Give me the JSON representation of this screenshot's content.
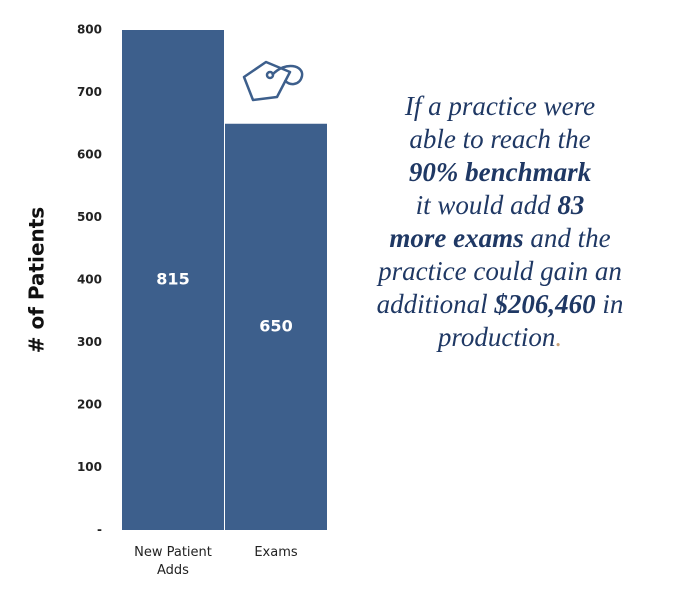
{
  "chart_data": {
    "type": "bar",
    "y_label": "# of Patients",
    "categories": [
      "New Patient Adds",
      "Exams"
    ],
    "values": [
      815,
      650
    ],
    "color": "#3d5f8c",
    "ylim": [
      0,
      800
    ],
    "yticks": [
      {
        "value": 0,
        "label": "-"
      },
      100,
      200,
      300,
      400,
      500,
      600,
      700,
      800
    ],
    "grid": false
  },
  "annotation": {
    "color": "#1f3864",
    "lines": [
      [
        {
          "text": "If a practice were",
          "bold": false
        }
      ],
      [
        {
          "text": "able to reach the",
          "bold": false
        }
      ],
      [
        {
          "text": "90% benchmark",
          "bold": true
        }
      ],
      [
        {
          "text": "it would add ",
          "bold": false
        },
        {
          "text": "83",
          "bold": true
        }
      ],
      [
        {
          "text": "more exams",
          "bold": true
        },
        {
          "text": " and the",
          "bold": false
        }
      ],
      [
        {
          "text": "practice could gain an",
          "bold": false
        }
      ],
      [
        {
          "text": "additional ",
          "bold": false
        },
        {
          "text": "$206,460",
          "bold": true
        },
        {
          "text": " in",
          "bold": false
        }
      ],
      [
        {
          "text": "production",
          "bold": false
        },
        {
          "text": ".",
          "bold": false,
          "color": "#c8a27a"
        }
      ]
    ]
  }
}
